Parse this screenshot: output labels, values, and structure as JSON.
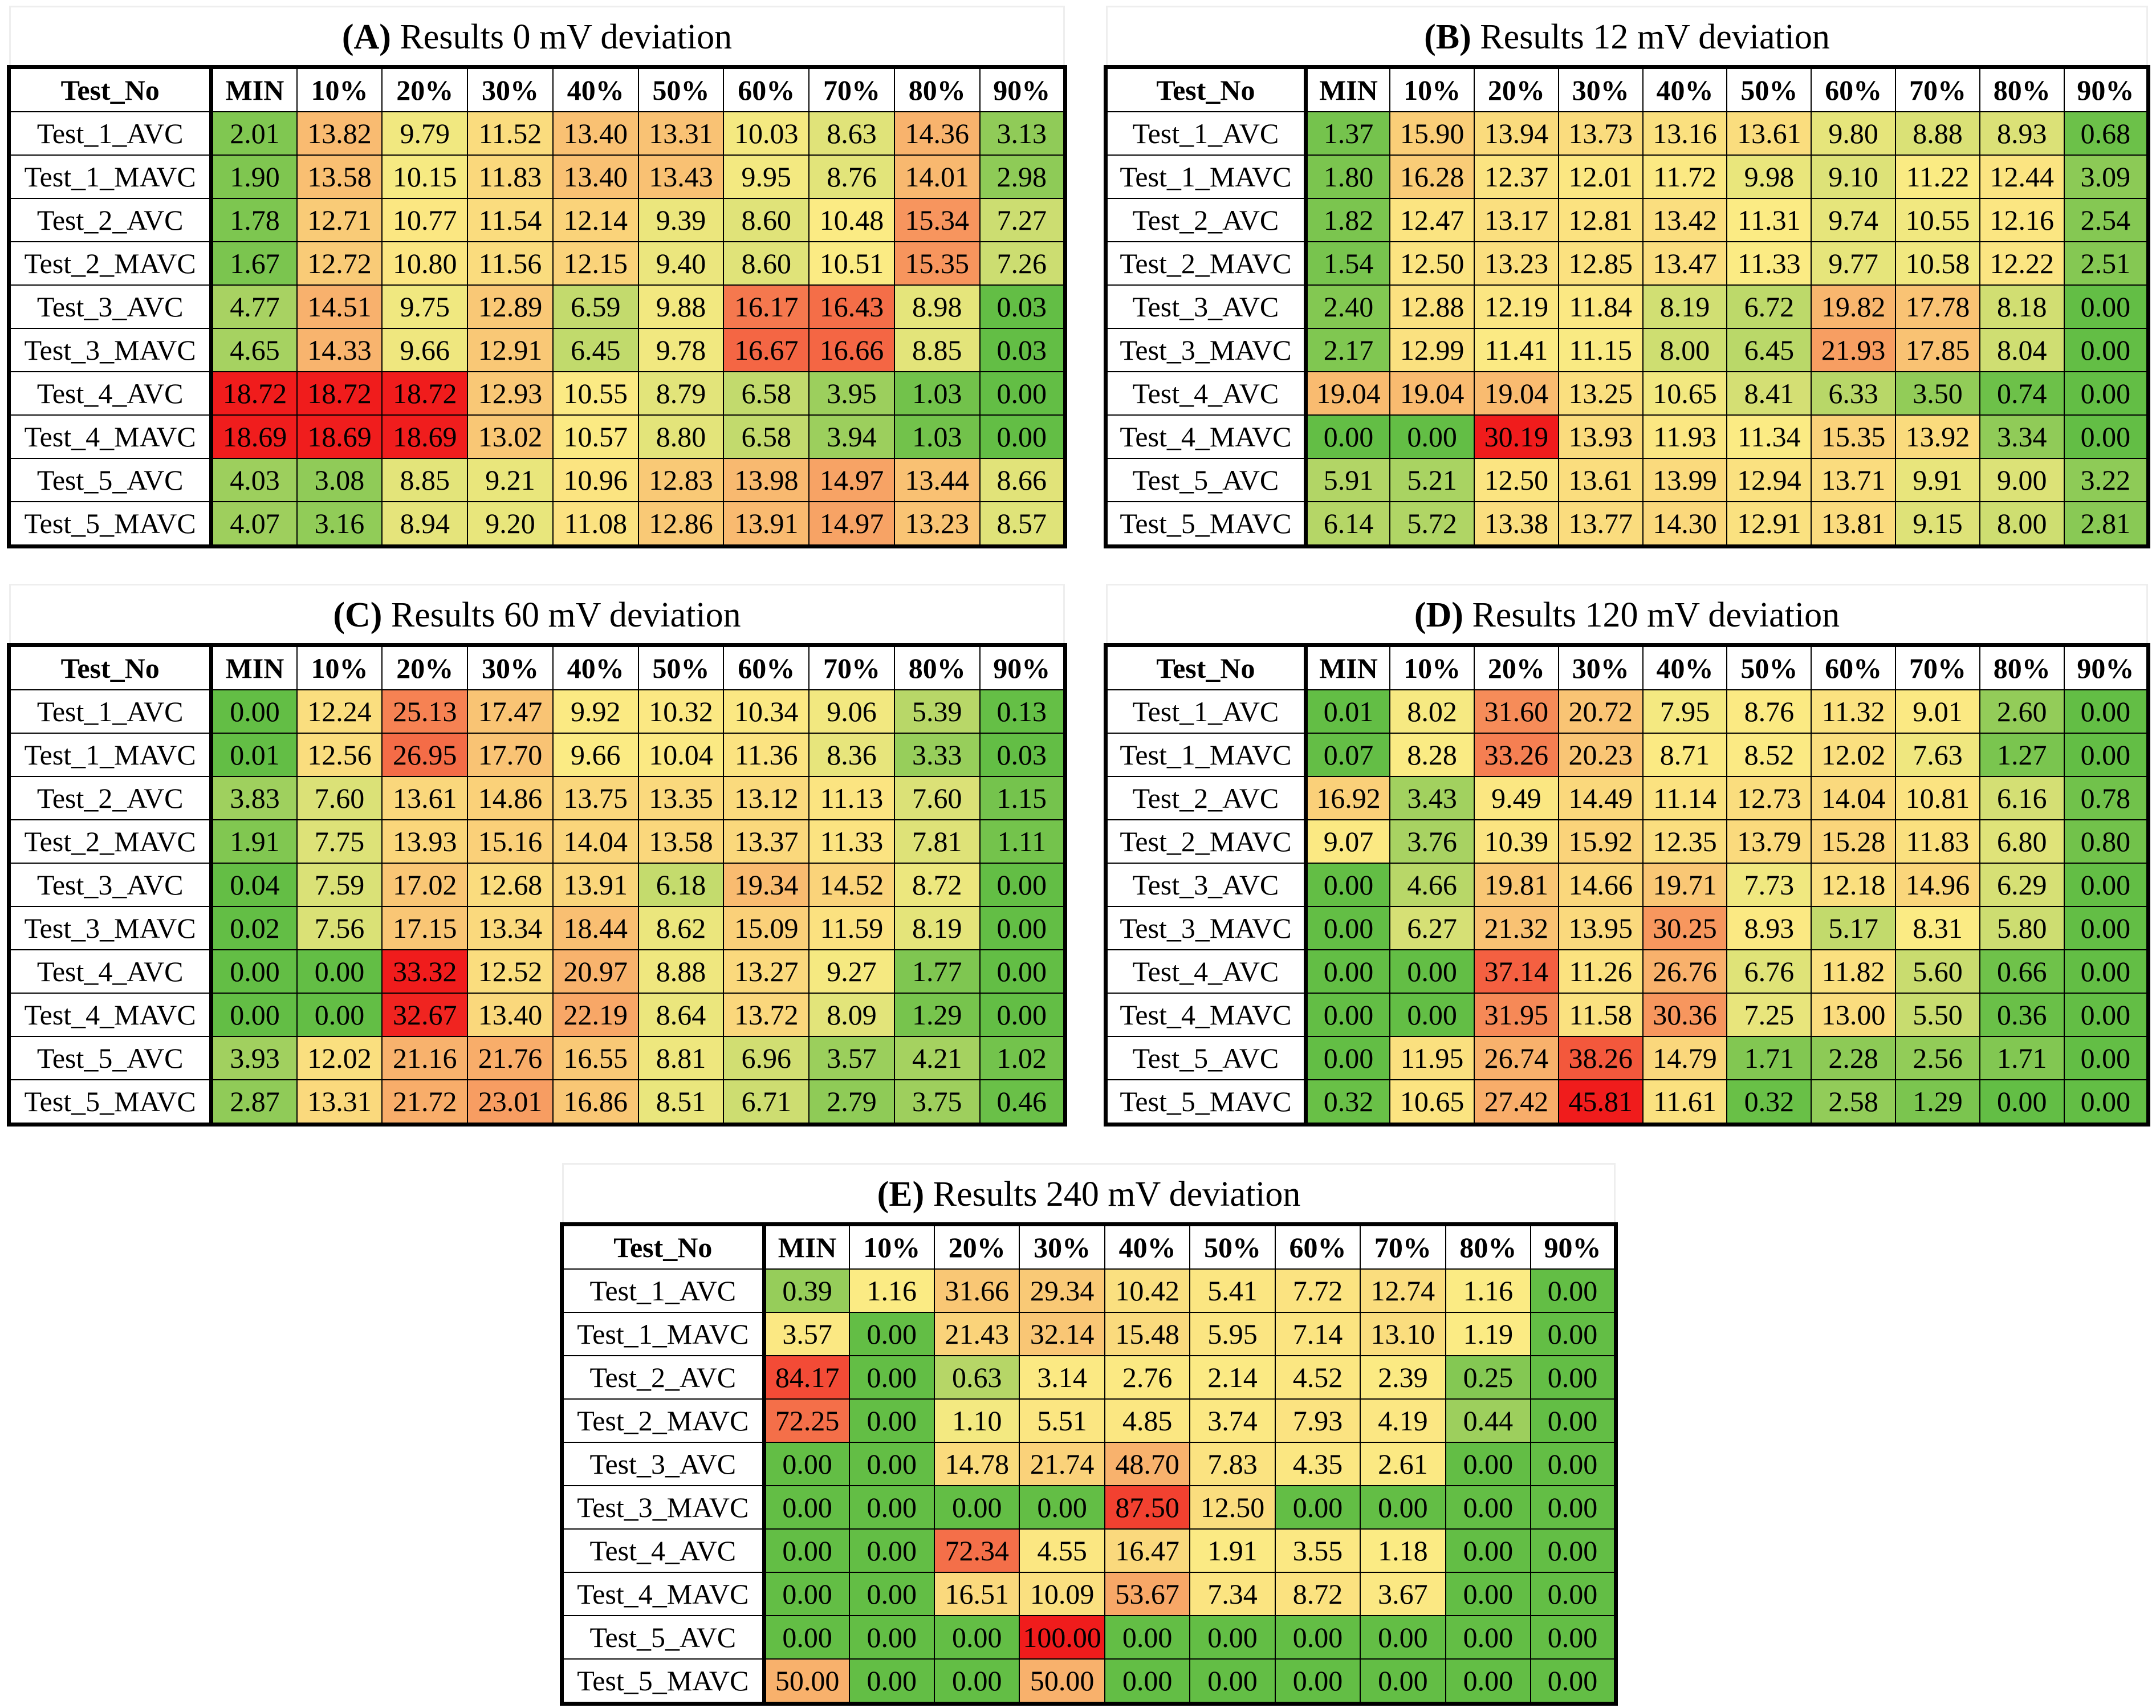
{
  "column_header_first": "Test_No",
  "columns": [
    "MIN",
    "10%",
    "20%",
    "30%",
    "40%",
    "50%",
    "60%",
    "70%",
    "80%",
    "90%"
  ],
  "row_labels": [
    "Test_1_AVC",
    "Test_1_MAVC",
    "Test_2_AVC",
    "Test_2_MAVC",
    "Test_3_AVC",
    "Test_3_MAVC",
    "Test_4_AVC",
    "Test_4_MAVC",
    "Test_5_AVC",
    "Test_5_MAVC"
  ],
  "panels": [
    {
      "label": "(A)",
      "title": "Results 0 mV deviation"
    },
    {
      "label": "(B)",
      "title": "Results 12 mV deviation"
    },
    {
      "label": "(C)",
      "title": "Results 60 mV deviation"
    },
    {
      "label": "(D)",
      "title": "Results 120 mV deviation"
    },
    {
      "label": "(E)",
      "title": "Results 240 mV deviation"
    }
  ],
  "colors": {
    "low": "#63be45",
    "mid": "#fbeb84",
    "high": "#f8b06c",
    "max": "#f01c1c"
  },
  "chart_data": [
    {
      "type": "heatmap",
      "title": "(A) Results 0 mV deviation",
      "x_categories": [
        "MIN",
        "10%",
        "20%",
        "30%",
        "40%",
        "50%",
        "60%",
        "70%",
        "80%",
        "90%"
      ],
      "y_categories": [
        "Test_1_AVC",
        "Test_1_MAVC",
        "Test_2_AVC",
        "Test_2_MAVC",
        "Test_3_AVC",
        "Test_3_MAVC",
        "Test_4_AVC",
        "Test_4_MAVC",
        "Test_5_AVC",
        "Test_5_MAVC"
      ],
      "values": [
        [
          "2.01",
          "13.82",
          "9.79",
          "11.52",
          "13.40",
          "13.31",
          "10.03",
          "8.63",
          "14.36",
          "3.13"
        ],
        [
          "1.90",
          "13.58",
          "10.15",
          "11.83",
          "13.40",
          "13.43",
          "9.95",
          "8.76",
          "14.01",
          "2.98"
        ],
        [
          "1.78",
          "12.71",
          "10.77",
          "11.54",
          "12.14",
          "9.39",
          "8.60",
          "10.48",
          "15.34",
          "7.27"
        ],
        [
          "1.67",
          "12.72",
          "10.80",
          "11.56",
          "12.15",
          "9.40",
          "8.60",
          "10.51",
          "15.35",
          "7.26"
        ],
        [
          "4.77",
          "14.51",
          "9.75",
          "12.89",
          "6.59",
          "9.88",
          "16.17",
          "16.43",
          "8.98",
          "0.03"
        ],
        [
          "4.65",
          "14.33",
          "9.66",
          "12.91",
          "6.45",
          "9.78",
          "16.67",
          "16.66",
          "8.85",
          "0.03"
        ],
        [
          "18.72",
          "18.72",
          "18.72",
          "12.93",
          "10.55",
          "8.79",
          "6.58",
          "3.95",
          "1.03",
          "0.00"
        ],
        [
          "18.69",
          "18.69",
          "18.69",
          "13.02",
          "10.57",
          "8.80",
          "6.58",
          "3.94",
          "1.03",
          "0.00"
        ],
        [
          "4.03",
          "3.08",
          "8.85",
          "9.21",
          "10.96",
          "12.83",
          "13.98",
          "14.97",
          "13.44",
          "8.66"
        ],
        [
          "4.07",
          "3.16",
          "8.94",
          "9.20",
          "11.08",
          "12.86",
          "13.91",
          "14.97",
          "13.23",
          "8.57"
        ]
      ]
    },
    {
      "type": "heatmap",
      "title": "(B) Results 12 mV deviation",
      "x_categories": [
        "MIN",
        "10%",
        "20%",
        "30%",
        "40%",
        "50%",
        "60%",
        "70%",
        "80%",
        "90%"
      ],
      "y_categories": [
        "Test_1_AVC",
        "Test_1_MAVC",
        "Test_2_AVC",
        "Test_2_MAVC",
        "Test_3_AVC",
        "Test_3_MAVC",
        "Test_4_AVC",
        "Test_4_MAVC",
        "Test_5_AVC",
        "Test_5_MAVC"
      ],
      "values": [
        [
          "1.37",
          "15.90",
          "13.94",
          "13.73",
          "13.16",
          "13.61",
          "9.80",
          "8.88",
          "8.93",
          "0.68"
        ],
        [
          "1.80",
          "16.28",
          "12.37",
          "12.01",
          "11.72",
          "9.98",
          "9.10",
          "11.22",
          "12.44",
          "3.09"
        ],
        [
          "1.82",
          "12.47",
          "13.17",
          "12.81",
          "13.42",
          "11.31",
          "9.74",
          "10.55",
          "12.16",
          "2.54"
        ],
        [
          "1.54",
          "12.50",
          "13.23",
          "12.85",
          "13.47",
          "11.33",
          "9.77",
          "10.58",
          "12.22",
          "2.51"
        ],
        [
          "2.40",
          "12.88",
          "12.19",
          "11.84",
          "8.19",
          "6.72",
          "19.82",
          "17.78",
          "8.18",
          "0.00"
        ],
        [
          "2.17",
          "12.99",
          "11.41",
          "11.15",
          "8.00",
          "6.45",
          "21.93",
          "17.85",
          "8.04",
          "0.00"
        ],
        [
          "19.04",
          "19.04",
          "19.04",
          "13.25",
          "10.65",
          "8.41",
          "6.33",
          "3.50",
          "0.74",
          "0.00"
        ],
        [
          "0.00",
          "0.00",
          "30.19",
          "13.93",
          "11.93",
          "11.34",
          "15.35",
          "13.92",
          "3.34",
          "0.00"
        ],
        [
          "5.91",
          "5.21",
          "12.50",
          "13.61",
          "13.99",
          "12.94",
          "13.71",
          "9.91",
          "9.00",
          "3.22"
        ],
        [
          "6.14",
          "5.72",
          "13.38",
          "13.77",
          "14.30",
          "12.91",
          "13.81",
          "9.15",
          "8.00",
          "2.81"
        ]
      ]
    },
    {
      "type": "heatmap",
      "title": "(C) Results 60 mV deviation",
      "x_categories": [
        "MIN",
        "10%",
        "20%",
        "30%",
        "40%",
        "50%",
        "60%",
        "70%",
        "80%",
        "90%"
      ],
      "y_categories": [
        "Test_1_AVC",
        "Test_1_MAVC",
        "Test_2_AVC",
        "Test_2_MAVC",
        "Test_3_AVC",
        "Test_3_MAVC",
        "Test_4_AVC",
        "Test_4_MAVC",
        "Test_5_AVC",
        "Test_5_MAVC"
      ],
      "values": [
        [
          "0.00",
          "12.24",
          "25.13",
          "17.47",
          "9.92",
          "10.32",
          "10.34",
          "9.06",
          "5.39",
          "0.13"
        ],
        [
          "0.01",
          "12.56",
          "26.95",
          "17.70",
          "9.66",
          "10.04",
          "11.36",
          "8.36",
          "3.33",
          "0.03"
        ],
        [
          "3.83",
          "7.60",
          "13.61",
          "14.86",
          "13.75",
          "13.35",
          "13.12",
          "11.13",
          "7.60",
          "1.15"
        ],
        [
          "1.91",
          "7.75",
          "13.93",
          "15.16",
          "14.04",
          "13.58",
          "13.37",
          "11.33",
          "7.81",
          "1.11"
        ],
        [
          "0.04",
          "7.59",
          "17.02",
          "12.68",
          "13.91",
          "6.18",
          "19.34",
          "14.52",
          "8.72",
          "0.00"
        ],
        [
          "0.02",
          "7.56",
          "17.15",
          "13.34",
          "18.44",
          "8.62",
          "15.09",
          "11.59",
          "8.19",
          "0.00"
        ],
        [
          "0.00",
          "0.00",
          "33.32",
          "12.52",
          "20.97",
          "8.88",
          "13.27",
          "9.27",
          "1.77",
          "0.00"
        ],
        [
          "0.00",
          "0.00",
          "32.67",
          "13.40",
          "22.19",
          "8.64",
          "13.72",
          "8.09",
          "1.29",
          "0.00"
        ],
        [
          "3.93",
          "12.02",
          "21.16",
          "21.76",
          "16.55",
          "8.81",
          "6.96",
          "3.57",
          "4.21",
          "1.02"
        ],
        [
          "2.87",
          "13.31",
          "21.72",
          "23.01",
          "16.86",
          "8.51",
          "6.71",
          "2.79",
          "3.75",
          "0.46"
        ]
      ]
    },
    {
      "type": "heatmap",
      "title": "(D) Results 120 mV deviation",
      "x_categories": [
        "MIN",
        "10%",
        "20%",
        "30%",
        "40%",
        "50%",
        "60%",
        "70%",
        "80%",
        "90%"
      ],
      "y_categories": [
        "Test_1_AVC",
        "Test_1_MAVC",
        "Test_2_AVC",
        "Test_2_MAVC",
        "Test_3_AVC",
        "Test_3_MAVC",
        "Test_4_AVC",
        "Test_4_MAVC",
        "Test_5_AVC",
        "Test_5_MAVC"
      ],
      "values": [
        [
          "0.01",
          "8.02",
          "31.60",
          "20.72",
          "7.95",
          "8.76",
          "11.32",
          "9.01",
          "2.60",
          "0.00"
        ],
        [
          "0.07",
          "8.28",
          "33.26",
          "20.23",
          "8.71",
          "8.52",
          "12.02",
          "7.63",
          "1.27",
          "0.00"
        ],
        [
          "16.92",
          "3.43",
          "9.49",
          "14.49",
          "11.14",
          "12.73",
          "14.04",
          "10.81",
          "6.16",
          "0.78"
        ],
        [
          "9.07",
          "3.76",
          "10.39",
          "15.92",
          "12.35",
          "13.79",
          "15.28",
          "11.83",
          "6.80",
          "0.80"
        ],
        [
          "0.00",
          "4.66",
          "19.81",
          "14.66",
          "19.71",
          "7.73",
          "12.18",
          "14.96",
          "6.29",
          "0.00"
        ],
        [
          "0.00",
          "6.27",
          "21.32",
          "13.95",
          "30.25",
          "8.93",
          "5.17",
          "8.31",
          "5.80",
          "0.00"
        ],
        [
          "0.00",
          "0.00",
          "37.14",
          "11.26",
          "26.76",
          "6.76",
          "11.82",
          "5.60",
          "0.66",
          "0.00"
        ],
        [
          "0.00",
          "0.00",
          "31.95",
          "11.58",
          "30.36",
          "7.25",
          "13.00",
          "5.50",
          "0.36",
          "0.00"
        ],
        [
          "0.00",
          "11.95",
          "26.74",
          "38.26",
          "14.79",
          "1.71",
          "2.28",
          "2.56",
          "1.71",
          "0.00"
        ],
        [
          "0.32",
          "10.65",
          "27.42",
          "45.81",
          "11.61",
          "0.32",
          "2.58",
          "1.29",
          "0.00",
          "0.00"
        ]
      ]
    },
    {
      "type": "heatmap",
      "title": "(E) Results 240 mV deviation",
      "x_categories": [
        "MIN",
        "10%",
        "20%",
        "30%",
        "40%",
        "50%",
        "60%",
        "70%",
        "80%",
        "90%"
      ],
      "y_categories": [
        "Test_1_AVC",
        "Test_1_MAVC",
        "Test_2_AVC",
        "Test_2_MAVC",
        "Test_3_AVC",
        "Test_3_MAVC",
        "Test_4_AVC",
        "Test_4_MAVC",
        "Test_5_AVC",
        "Test_5_MAVC"
      ],
      "values": [
        [
          "0.39",
          "1.16",
          "31.66",
          "29.34",
          "10.42",
          "5.41",
          "7.72",
          "12.74",
          "1.16",
          "0.00"
        ],
        [
          "3.57",
          "0.00",
          "21.43",
          "32.14",
          "15.48",
          "5.95",
          "7.14",
          "13.10",
          "1.19",
          "0.00"
        ],
        [
          "84.17",
          "0.00",
          "0.63",
          "3.14",
          "2.76",
          "2.14",
          "4.52",
          "2.39",
          "0.25",
          "0.00"
        ],
        [
          "72.25",
          "0.00",
          "1.10",
          "5.51",
          "4.85",
          "3.74",
          "7.93",
          "4.19",
          "0.44",
          "0.00"
        ],
        [
          "0.00",
          "0.00",
          "14.78",
          "21.74",
          "48.70",
          "7.83",
          "4.35",
          "2.61",
          "0.00",
          "0.00"
        ],
        [
          "0.00",
          "0.00",
          "0.00",
          "0.00",
          "87.50",
          "12.50",
          "0.00",
          "0.00",
          "0.00",
          "0.00"
        ],
        [
          "0.00",
          "0.00",
          "72.34",
          "4.55",
          "16.47",
          "1.91",
          "3.55",
          "1.18",
          "0.00",
          "0.00"
        ],
        [
          "0.00",
          "0.00",
          "16.51",
          "10.09",
          "53.67",
          "7.34",
          "8.72",
          "3.67",
          "0.00",
          "0.00"
        ],
        [
          "0.00",
          "0.00",
          "0.00",
          "100.00",
          "0.00",
          "0.00",
          "0.00",
          "0.00",
          "0.00",
          "0.00"
        ],
        [
          "50.00",
          "0.00",
          "0.00",
          "50.00",
          "0.00",
          "0.00",
          "0.00",
          "0.00",
          "0.00",
          "0.00"
        ]
      ]
    }
  ]
}
